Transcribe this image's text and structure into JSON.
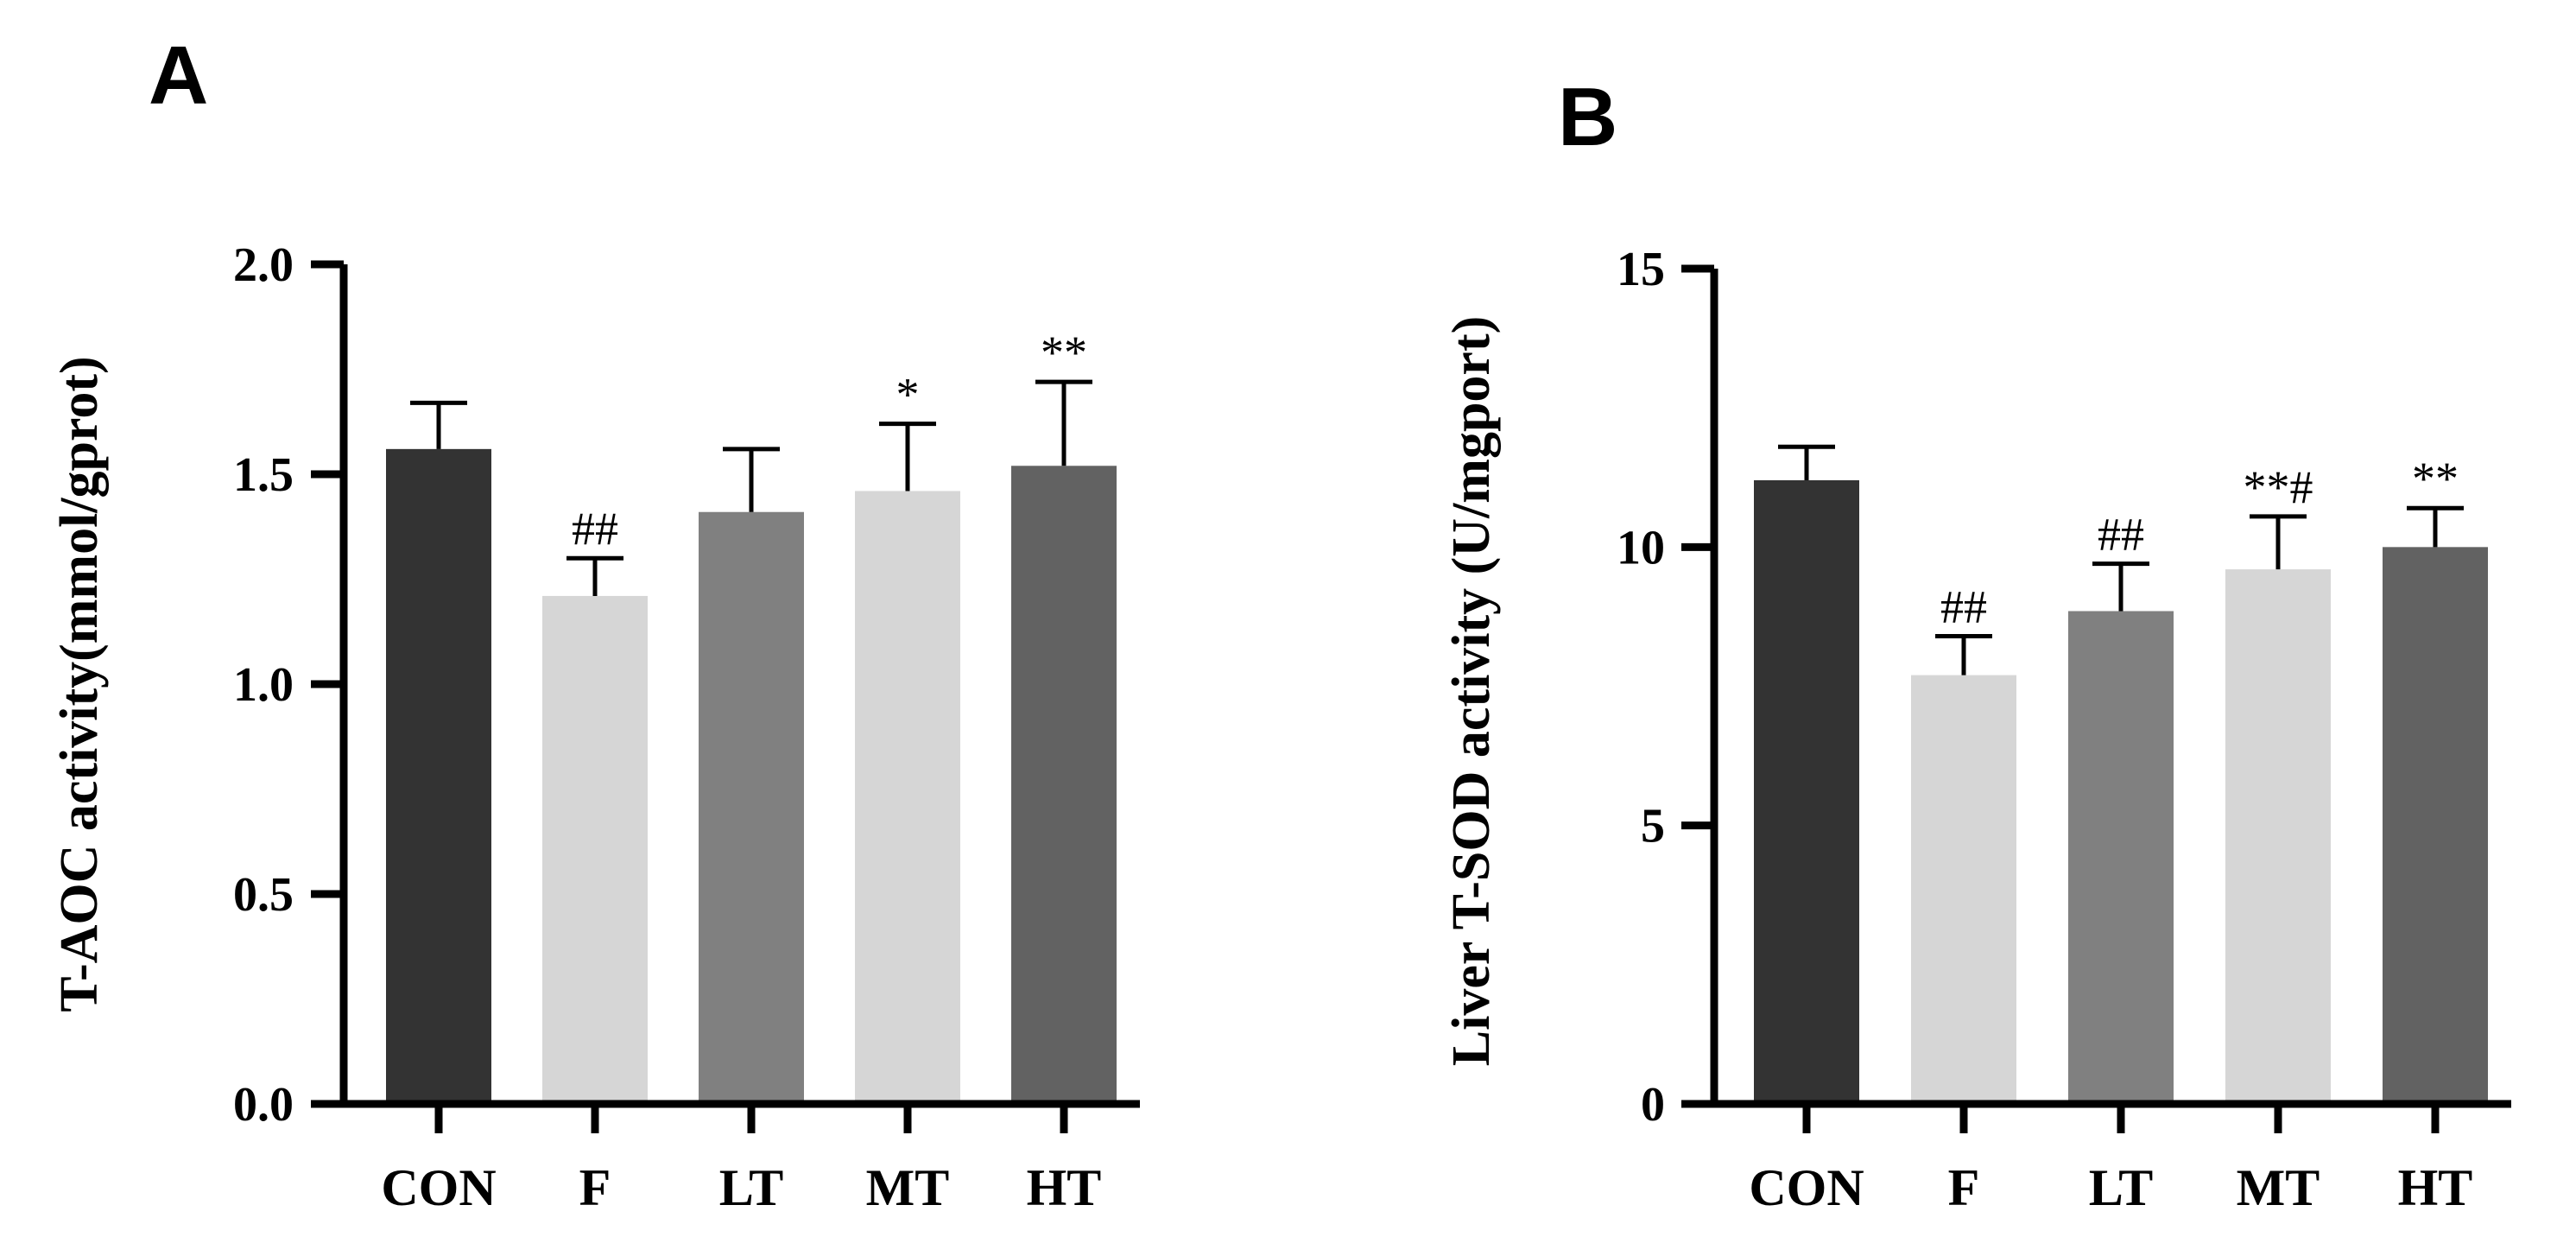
{
  "chart_data": [
    {
      "type": "bar",
      "panel": "A",
      "title": "",
      "xlabel": "",
      "ylabel": "T-AOC activity(mmol/gprot)",
      "ylim": [
        0,
        2.0
      ],
      "yticks": [
        0,
        0.5,
        1.0,
        1.5,
        2.0
      ],
      "ytick_labels": [
        "0.0",
        "0.5",
        "1.0",
        "1.5",
        "2.0"
      ],
      "categories": [
        "CON",
        "F",
        "LT",
        "MT",
        "HT"
      ],
      "values": [
        1.56,
        1.21,
        1.41,
        1.46,
        1.52
      ],
      "errors": [
        0.11,
        0.09,
        0.15,
        0.16,
        0.2
      ],
      "colors": [
        "#333333",
        "#d6d6d6",
        "#808080",
        "#d6d6d6",
        "#626262"
      ],
      "annotations": [
        "",
        "##",
        "",
        "*",
        "**"
      ]
    },
    {
      "type": "bar",
      "panel": "B",
      "title": "",
      "xlabel": "",
      "ylabel": "Liver T-SOD activity (U/mgport)",
      "ylim": [
        0,
        15
      ],
      "yticks": [
        0,
        5,
        10,
        15
      ],
      "ytick_labels": [
        "0",
        "5",
        "10",
        "15"
      ],
      "categories": [
        "CON",
        "F",
        "LT",
        "MT",
        "HT"
      ],
      "values": [
        11.2,
        7.7,
        8.85,
        9.6,
        10.0
      ],
      "errors": [
        0.6,
        0.7,
        0.85,
        0.95,
        0.7
      ],
      "colors": [
        "#333333",
        "#d6d6d6",
        "#808080",
        "#d6d6d6",
        "#626262"
      ],
      "annotations": [
        "",
        "##",
        "##",
        "**#",
        "**"
      ]
    }
  ]
}
